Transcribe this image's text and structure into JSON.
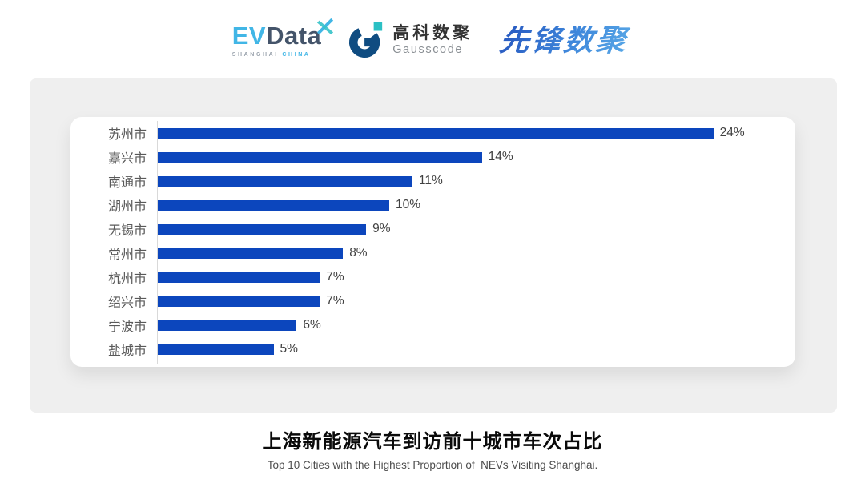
{
  "header": {
    "evdata": {
      "ev": "EV",
      "data": "Data",
      "sub_left": "SHANGHAI",
      "sub_right": "CHINA",
      "ev_color": "#41B6E6",
      "data_color": "#44546A"
    },
    "gausscode": {
      "cn": "高科数聚",
      "en": "Gausscode",
      "icon_color": "#0F4C81",
      "icon_accent": "#2BC0C4"
    },
    "xianfeng": "先锋数聚"
  },
  "chart_data": {
    "type": "bar",
    "orientation": "horizontal",
    "title": "上海新能源汽车到访前十城市车次占比",
    "subtitle": "Top 10 Cities with the Highest Proportion of  NEVs Visiting Shanghai.",
    "categories": [
      "苏州市",
      "嘉兴市",
      "南通市",
      "湖州市",
      "无锡市",
      "常州市",
      "杭州市",
      "绍兴市",
      "宁波市",
      "盐城市"
    ],
    "values": [
      24,
      14,
      11,
      10,
      9,
      8,
      7,
      7,
      6,
      5
    ],
    "value_labels": [
      "24%",
      "14%",
      "11%",
      "10%",
      "9%",
      "8%",
      "7%",
      "7%",
      "6%",
      "5%"
    ],
    "unit": "%",
    "xlim": [
      0,
      27
    ],
    "grid": false,
    "legend": false,
    "bar_color": "#0C46BD",
    "axis_color": "#D9D9D9",
    "label_color": "#595959",
    "value_color": "#404040"
  },
  "footer": {
    "title": "上海新能源汽车到访前十城市车次占比",
    "subtitle": "Top 10 Cities with the Highest Proportion of  NEVs Visiting Shanghai."
  }
}
